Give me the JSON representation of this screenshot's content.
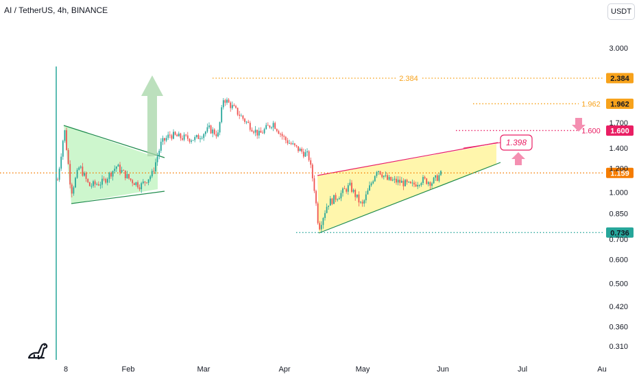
{
  "header": {
    "symbol_title": "AI / TetherUS, 4h, BINANCE",
    "currency": "USDT"
  },
  "chart_data": {
    "type": "candlestick",
    "title": "AI / TetherUS, 4h, BINANCE",
    "y_scale": "log",
    "ylim": [
      0.29,
      4.0
    ],
    "y_ticks": [
      "3.000",
      "1.700",
      "1.400",
      "1.200",
      "1.000",
      "0.850",
      "0.700",
      "0.600",
      "0.500",
      "0.420",
      "0.360",
      "0.310"
    ],
    "x_ticks": [
      "8",
      "Feb",
      "Mar",
      "Apr",
      "May",
      "Jun",
      "Jul",
      "Au"
    ],
    "approx_price_path": [
      [
        "8",
        1.1
      ],
      [
        "8",
        1.62
      ],
      [
        "8",
        1.0
      ],
      [
        "8",
        1.22
      ],
      [
        "Feb",
        1.05
      ],
      [
        "Feb",
        1.15
      ],
      [
        "Feb",
        1.45
      ],
      [
        "Feb",
        1.55
      ],
      [
        "Mar",
        1.52
      ],
      [
        "Mar",
        2.05
      ],
      [
        "Mar",
        1.8
      ],
      [
        "Mar",
        1.55
      ],
      [
        "Apr",
        1.5
      ],
      [
        "Apr",
        1.32
      ],
      [
        "Apr",
        0.74
      ],
      [
        "Apr",
        0.88
      ],
      [
        "May",
        0.95
      ],
      [
        "May",
        1.2
      ],
      [
        "May",
        1.05
      ],
      [
        "May",
        1.1
      ],
      [
        "Jun",
        1.159
      ]
    ],
    "levels": [
      {
        "value": 2.384,
        "label": "2.384",
        "color": "#f7a21b",
        "style": "dotted"
      },
      {
        "value": 1.962,
        "label": "1.962",
        "color": "#f7a21b",
        "style": "dotted"
      },
      {
        "value": 1.6,
        "label": "1.600",
        "color": "#e91e63",
        "style": "dotted"
      },
      {
        "value": 1.159,
        "label": "1.159",
        "color": "#f57c00",
        "style": "dotted",
        "current_price": true
      },
      {
        "value": 0.736,
        "label": "0.736",
        "color": "#26a69a",
        "style": "dotted"
      }
    ],
    "annotations": [
      {
        "type": "callout",
        "text": "1.398",
        "color": "#e91e63"
      },
      {
        "type": "arrow-up",
        "color": "#a5d6a7"
      },
      {
        "type": "arrow-up",
        "color": "#f48fb1"
      },
      {
        "type": "arrow-down",
        "color": "#f48fb1"
      },
      {
        "type": "triangle-pattern",
        "color": "#c8f5c8"
      },
      {
        "type": "rising-wedge",
        "color": "#fff6a8"
      }
    ],
    "colors": {
      "up": "#26a69a",
      "down": "#ef5350",
      "wick_up": "#26a69a",
      "wick_down": "#ef5350"
    }
  }
}
